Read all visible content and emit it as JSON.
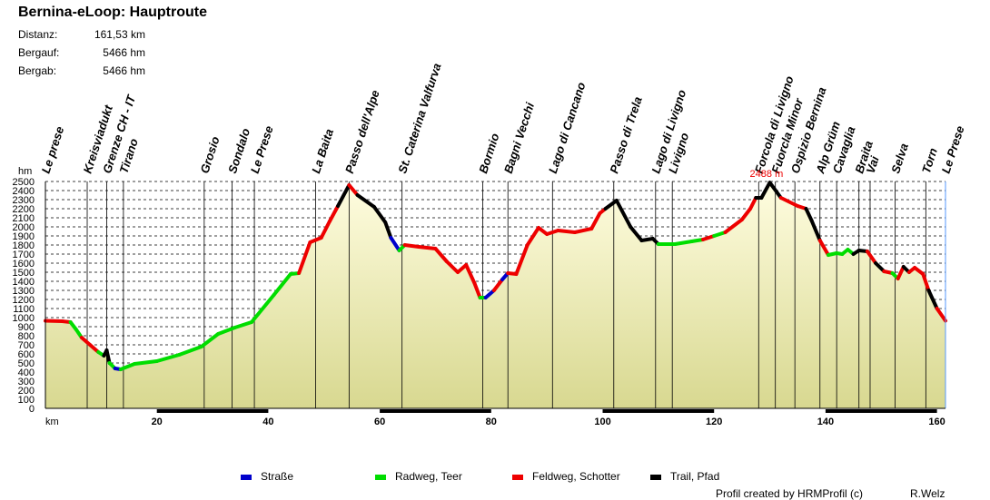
{
  "title": "Bernina-eLoop: Hauptroute",
  "stats": [
    {
      "label": "Distanz:",
      "value": "161,53 km"
    },
    {
      "label": "Bergauf:",
      "value": "5466 hm"
    },
    {
      "label": "Bergab:",
      "value": "5466 hm"
    }
  ],
  "legend": [
    {
      "name": "Straße",
      "color": "#0000cc"
    },
    {
      "name": "Radweg, Teer",
      "color": "#00dd00"
    },
    {
      "name": "Feldweg, Schotter",
      "color": "#ee0000"
    },
    {
      "name": "Trail, Pfad",
      "color": "#000000"
    }
  ],
  "footer": {
    "credit": "Profil created by HRMProfil (c)",
    "author": "R.Welz"
  },
  "chart_data": {
    "type": "area",
    "title": "Bernina-eLoop: Hauptroute",
    "xlabel": "km",
    "ylabel": "hm",
    "xlim": [
      0,
      161.53
    ],
    "ylim": [
      0,
      2500
    ],
    "x_ticks": [
      20,
      40,
      60,
      80,
      100,
      120,
      140,
      160
    ],
    "y_ticks": [
      0,
      100,
      200,
      300,
      400,
      500,
      600,
      700,
      800,
      900,
      1000,
      1100,
      1200,
      1300,
      1400,
      1500,
      1600,
      1700,
      1800,
      1900,
      2000,
      2100,
      2200,
      2300,
      2400,
      2500
    ],
    "max_label": "2488 m",
    "waypoints": [
      {
        "name": "Le prese",
        "km": 0
      },
      {
        "name": "Kreisviadukt",
        "km": 7.5
      },
      {
        "name": "Grenze CH - IT",
        "km": 11
      },
      {
        "name": "Tirano",
        "km": 14
      },
      {
        "name": "Grosio",
        "km": 28.5
      },
      {
        "name": "Sondalo",
        "km": 33.5
      },
      {
        "name": "Le Prese",
        "km": 37.5
      },
      {
        "name": "La Baita",
        "km": 48.5
      },
      {
        "name": "Passo dell'Alpe",
        "km": 54.5
      },
      {
        "name": "St. Caterina Valfurva",
        "km": 64
      },
      {
        "name": "Bormio",
        "km": 78.5
      },
      {
        "name": "Bagni Vecchi",
        "km": 83
      },
      {
        "name": "Lago di Cancano",
        "km": 91
      },
      {
        "name": "Passo di Trela",
        "km": 102
      },
      {
        "name": "Lago di Livigno",
        "km": 109.5
      },
      {
        "name": "Livigno",
        "km": 112.5
      },
      {
        "name": "Forcola di Livigno",
        "km": 128
      },
      {
        "name": "Fuorcla Minor",
        "km": 131
      },
      {
        "name": "Ospizio Bernina",
        "km": 134.5
      },
      {
        "name": "Alp Grüm",
        "km": 139
      },
      {
        "name": "Cavaglia",
        "km": 142
      },
      {
        "name": "Braita",
        "km": 146
      },
      {
        "name": "Vai",
        "km": 148
      },
      {
        "name": "Selva",
        "km": 152.5
      },
      {
        "name": "Torn",
        "km": 158
      },
      {
        "name": "Le Prese",
        "km": 161.53
      }
    ],
    "profile": [
      {
        "km": 0,
        "elev": 965,
        "type": "Feldweg, Schotter"
      },
      {
        "km": 3,
        "elev": 960,
        "type": "Feldweg, Schotter"
      },
      {
        "km": 4.5,
        "elev": 950,
        "type": "Radweg, Teer"
      },
      {
        "km": 5.5,
        "elev": 870,
        "type": "Radweg, Teer"
      },
      {
        "km": 6.5,
        "elev": 780,
        "type": "Feldweg, Schotter"
      },
      {
        "km": 8,
        "elev": 700,
        "type": "Feldweg, Schotter"
      },
      {
        "km": 9.5,
        "elev": 620,
        "type": "Radweg, Teer"
      },
      {
        "km": 10.5,
        "elev": 580,
        "type": "Trail, Pfad"
      },
      {
        "km": 11,
        "elev": 640,
        "type": "Trail, Pfad"
      },
      {
        "km": 11.5,
        "elev": 500,
        "type": "Radweg, Teer"
      },
      {
        "km": 12.5,
        "elev": 440,
        "type": "Straße"
      },
      {
        "km": 13.5,
        "elev": 430,
        "type": "Radweg, Teer"
      },
      {
        "km": 16,
        "elev": 490,
        "type": "Radweg, Teer"
      },
      {
        "km": 20,
        "elev": 520,
        "type": "Radweg, Teer"
      },
      {
        "km": 24,
        "elev": 590,
        "type": "Radweg, Teer"
      },
      {
        "km": 28,
        "elev": 680,
        "type": "Radweg, Teer"
      },
      {
        "km": 31,
        "elev": 820,
        "type": "Radweg, Teer"
      },
      {
        "km": 34,
        "elev": 890,
        "type": "Radweg, Teer"
      },
      {
        "km": 37,
        "elev": 950,
        "type": "Radweg, Teer"
      },
      {
        "km": 41,
        "elev": 1250,
        "type": "Radweg, Teer"
      },
      {
        "km": 44,
        "elev": 1480,
        "type": "Radweg, Teer"
      },
      {
        "km": 45.5,
        "elev": 1490,
        "type": "Feldweg, Schotter"
      },
      {
        "km": 47.5,
        "elev": 1830,
        "type": "Feldweg, Schotter"
      },
      {
        "km": 49.5,
        "elev": 1880,
        "type": "Feldweg, Schotter"
      },
      {
        "km": 51,
        "elev": 2060,
        "type": "Feldweg, Schotter"
      },
      {
        "km": 52.5,
        "elev": 2230,
        "type": "Trail, Pfad"
      },
      {
        "km": 54.5,
        "elev": 2460,
        "type": "Feldweg, Schotter"
      },
      {
        "km": 56,
        "elev": 2350,
        "type": "Trail, Pfad"
      },
      {
        "km": 59,
        "elev": 2220,
        "type": "Trail, Pfad"
      },
      {
        "km": 61,
        "elev": 2050,
        "type": "Trail, Pfad"
      },
      {
        "km": 62,
        "elev": 1880,
        "type": "Straße"
      },
      {
        "km": 63.5,
        "elev": 1740,
        "type": "Radweg, Teer"
      },
      {
        "km": 64.5,
        "elev": 1800,
        "type": "Feldweg, Schotter"
      },
      {
        "km": 67,
        "elev": 1780,
        "type": "Feldweg, Schotter"
      },
      {
        "km": 70,
        "elev": 1760,
        "type": "Feldweg, Schotter"
      },
      {
        "km": 72,
        "elev": 1620,
        "type": "Feldweg, Schotter"
      },
      {
        "km": 74,
        "elev": 1500,
        "type": "Feldweg, Schotter"
      },
      {
        "km": 75.5,
        "elev": 1580,
        "type": "Feldweg, Schotter"
      },
      {
        "km": 77,
        "elev": 1380,
        "type": "Feldweg, Schotter"
      },
      {
        "km": 78,
        "elev": 1220,
        "type": "Radweg, Teer"
      },
      {
        "km": 79,
        "elev": 1220,
        "type": "Straße"
      },
      {
        "km": 80.5,
        "elev": 1300,
        "type": "Feldweg, Schotter"
      },
      {
        "km": 82,
        "elev": 1420,
        "type": "Straße"
      },
      {
        "km": 83,
        "elev": 1490,
        "type": "Feldweg, Schotter"
      },
      {
        "km": 84.5,
        "elev": 1480,
        "type": "Feldweg, Schotter"
      },
      {
        "km": 86.5,
        "elev": 1800,
        "type": "Feldweg, Schotter"
      },
      {
        "km": 88.5,
        "elev": 1990,
        "type": "Feldweg, Schotter"
      },
      {
        "km": 90,
        "elev": 1920,
        "type": "Feldweg, Schotter"
      },
      {
        "km": 92,
        "elev": 1960,
        "type": "Feldweg, Schotter"
      },
      {
        "km": 95,
        "elev": 1940,
        "type": "Feldweg, Schotter"
      },
      {
        "km": 98,
        "elev": 1980,
        "type": "Feldweg, Schotter"
      },
      {
        "km": 99.5,
        "elev": 2150,
        "type": "Feldweg, Schotter"
      },
      {
        "km": 100.5,
        "elev": 2200,
        "type": "Trail, Pfad"
      },
      {
        "km": 102.5,
        "elev": 2290,
        "type": "Trail, Pfad"
      },
      {
        "km": 105,
        "elev": 2000,
        "type": "Trail, Pfad"
      },
      {
        "km": 107,
        "elev": 1850,
        "type": "Trail, Pfad"
      },
      {
        "km": 109,
        "elev": 1870,
        "type": "Trail, Pfad"
      },
      {
        "km": 110,
        "elev": 1810,
        "type": "Radweg, Teer"
      },
      {
        "km": 113,
        "elev": 1810,
        "type": "Radweg, Teer"
      },
      {
        "km": 116,
        "elev": 1840,
        "type": "Radweg, Teer"
      },
      {
        "km": 118,
        "elev": 1860,
        "type": "Feldweg, Schotter"
      },
      {
        "km": 120,
        "elev": 1900,
        "type": "Radweg, Teer"
      },
      {
        "km": 122,
        "elev": 1940,
        "type": "Feldweg, Schotter"
      },
      {
        "km": 125,
        "elev": 2080,
        "type": "Feldweg, Schotter"
      },
      {
        "km": 126.5,
        "elev": 2200,
        "type": "Feldweg, Schotter"
      },
      {
        "km": 127.5,
        "elev": 2320,
        "type": "Trail, Pfad"
      },
      {
        "km": 128.5,
        "elev": 2320,
        "type": "Trail, Pfad"
      },
      {
        "km": 130,
        "elev": 2488,
        "type": "Trail, Pfad"
      },
      {
        "km": 132,
        "elev": 2320,
        "type": "Feldweg, Schotter"
      },
      {
        "km": 135,
        "elev": 2230,
        "type": "Feldweg, Schotter"
      },
      {
        "km": 136.5,
        "elev": 2200,
        "type": "Trail, Pfad"
      },
      {
        "km": 137.5,
        "elev": 2070,
        "type": "Trail, Pfad"
      },
      {
        "km": 139,
        "elev": 1850,
        "type": "Feldweg, Schotter"
      },
      {
        "km": 140.5,
        "elev": 1690,
        "type": "Radweg, Teer"
      },
      {
        "km": 142,
        "elev": 1710,
        "type": "Radweg, Teer"
      },
      {
        "km": 143,
        "elev": 1700,
        "type": "Radweg, Teer"
      },
      {
        "km": 144,
        "elev": 1750,
        "type": "Radweg, Teer"
      },
      {
        "km": 145,
        "elev": 1700,
        "type": "Trail, Pfad"
      },
      {
        "km": 146,
        "elev": 1740,
        "type": "Trail, Pfad"
      },
      {
        "km": 147.5,
        "elev": 1730,
        "type": "Feldweg, Schotter"
      },
      {
        "km": 149,
        "elev": 1600,
        "type": "Trail, Pfad"
      },
      {
        "km": 150.5,
        "elev": 1510,
        "type": "Feldweg, Schotter"
      },
      {
        "km": 152,
        "elev": 1490,
        "type": "Radweg, Teer"
      },
      {
        "km": 153,
        "elev": 1430,
        "type": "Feldweg, Schotter"
      },
      {
        "km": 154,
        "elev": 1560,
        "type": "Trail, Pfad"
      },
      {
        "km": 155,
        "elev": 1500,
        "type": "Feldweg, Schotter"
      },
      {
        "km": 156,
        "elev": 1550,
        "type": "Feldweg, Schotter"
      },
      {
        "km": 157.5,
        "elev": 1480,
        "type": "Feldweg, Schotter"
      },
      {
        "km": 158.5,
        "elev": 1300,
        "type": "Trail, Pfad"
      },
      {
        "km": 160,
        "elev": 1100,
        "type": "Feldweg, Schotter"
      },
      {
        "km": 161.53,
        "elev": 965,
        "type": "Straße"
      }
    ]
  }
}
